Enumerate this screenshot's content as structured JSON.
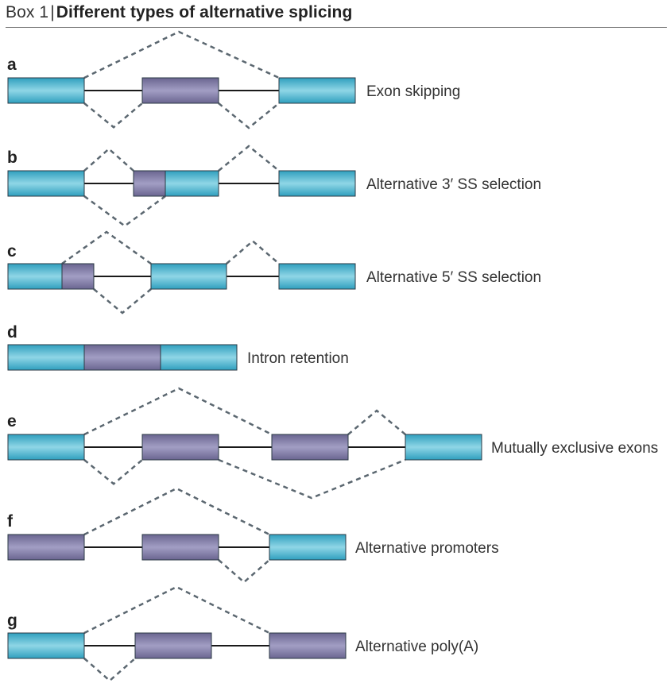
{
  "header": {
    "box_label": "Box 1",
    "separator": "|",
    "title": "Different types of alternative splicing"
  },
  "panels": [
    {
      "letter": "a",
      "caption": "Exon skipping",
      "exons": [
        {
          "type": "constitutive"
        },
        {
          "type": "alternative"
        },
        {
          "type": "constitutive"
        }
      ]
    },
    {
      "letter": "b",
      "caption": "Alternative 3′ SS selection",
      "exons": [
        {
          "type": "constitutive"
        },
        {
          "type": "alternative"
        },
        {
          "type": "constitutive"
        },
        {
          "type": "constitutive"
        }
      ]
    },
    {
      "letter": "c",
      "caption": "Alternative 5′ SS selection",
      "exons": [
        {
          "type": "constitutive"
        },
        {
          "type": "alternative"
        },
        {
          "type": "constitutive"
        },
        {
          "type": "constitutive"
        }
      ]
    },
    {
      "letter": "d",
      "caption": "Intron retention",
      "exons": [
        {
          "type": "constitutive"
        },
        {
          "type": "alternative"
        },
        {
          "type": "constitutive"
        }
      ]
    },
    {
      "letter": "e",
      "caption": "Mutually exclusive exons",
      "exons": [
        {
          "type": "constitutive"
        },
        {
          "type": "alternative"
        },
        {
          "type": "alternative"
        },
        {
          "type": "constitutive"
        }
      ]
    },
    {
      "letter": "f",
      "caption": "Alternative promoters",
      "exons": [
        {
          "type": "alternative"
        },
        {
          "type": "alternative"
        },
        {
          "type": "constitutive"
        }
      ]
    },
    {
      "letter": "g",
      "caption": "Alternative poly(A)",
      "exons": [
        {
          "type": "constitutive"
        },
        {
          "type": "alternative"
        },
        {
          "type": "alternative"
        }
      ]
    }
  ],
  "colors": {
    "constitutive_exon": "#4fb8d0",
    "alternative_exon": "#7f7aa6",
    "intron_line": "#1a1a1a",
    "splice_line": "#5b6770"
  }
}
